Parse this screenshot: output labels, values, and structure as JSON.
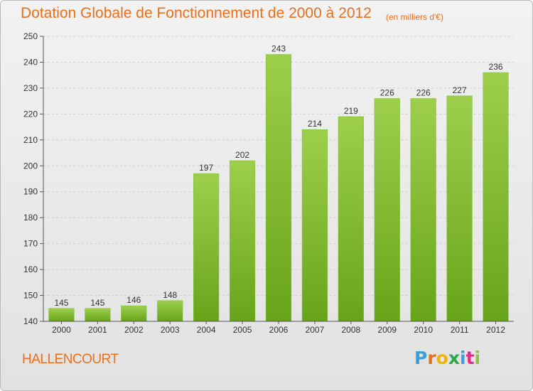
{
  "header": {
    "title": "Dotation Globale de Fonctionnement de 2000 à 2012",
    "unit": "(en milliers d'€)"
  },
  "footer": {
    "commune": "HALLENCOURT",
    "logo": {
      "letters": [
        "P",
        "r",
        "o",
        "x",
        "i",
        "t",
        "i"
      ],
      "colors": [
        "#3aa0d8",
        "#e8701d",
        "#f2b400",
        "#2fa64a",
        "#3aa0d8",
        "#e02b8a",
        "#8bc53f"
      ]
    }
  },
  "colors": {
    "accent": "#e8701d",
    "bar_top": "#9dcf4d",
    "bar_bottom": "#67a41a",
    "grid": "#d0d0d0"
  },
  "chart_data": {
    "type": "bar",
    "title": "Dotation Globale de Fonctionnement de 2000 à 2012",
    "subtitle": "(en milliers d'€)",
    "categories": [
      "2000",
      "2001",
      "2002",
      "2003",
      "2004",
      "2005",
      "2006",
      "2007",
      "2008",
      "2009",
      "2010",
      "2011",
      "2012"
    ],
    "values": [
      145,
      145,
      146,
      148,
      197,
      202,
      243,
      214,
      219,
      226,
      226,
      227,
      236
    ],
    "ylim": [
      140,
      250
    ],
    "yticks": [
      140,
      150,
      160,
      170,
      180,
      190,
      200,
      210,
      220,
      230,
      240,
      250
    ],
    "grid": true,
    "legend": "none"
  }
}
